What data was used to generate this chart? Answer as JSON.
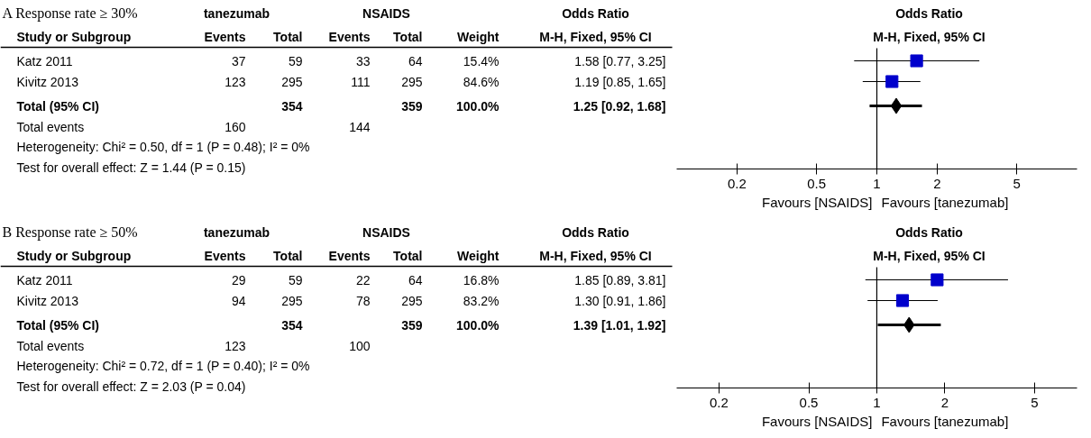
{
  "chart_data": [
    {
      "type": "scatter",
      "orientation": "horizontal",
      "categories": [
        "Katz 2011",
        "Kivitz 2013",
        "Total (95% CI)"
      ],
      "series": [
        {
          "marker": "square",
          "color": "#0000cc",
          "values": [
            1.58,
            1.19,
            null
          ],
          "errors": [
            [
              0.77,
              3.25
            ],
            [
              0.85,
              1.65
            ],
            null
          ]
        },
        {
          "marker": "diamond",
          "color": "#000000",
          "values": [
            null,
            null,
            1.25
          ],
          "errors": [
            null,
            null,
            [
              0.92,
              1.68
            ]
          ]
        }
      ],
      "value_labels": [
        "1.58 [0.77, 3.25]",
        "1.19 [0.85, 1.65]",
        "1.25 [0.92, 1.68]"
      ],
      "log": "x",
      "xlim": [
        0.1,
        10
      ],
      "xticks": [
        0.2,
        0.5,
        1,
        2,
        5
      ],
      "tick_labels": "x",
      "ref_lines": [
        {
          "axis": "x",
          "value": 1
        }
      ],
      "annotations": [
        "tanezumab",
        "NSAIDS",
        "Odds Ratio",
        "Odds Ratio",
        "Study or Subgroup",
        "Events",
        "Total",
        "Events",
        "Total",
        "Weight",
        "M-H, Fixed, 95% CI",
        "M-H, Fixed, 95% CI",
        "37",
        "59",
        "33",
        "64",
        "15.4%",
        "123",
        "295",
        "111",
        "295",
        "84.6%",
        "354",
        "359",
        "100.0%",
        "Total events",
        "160",
        "144",
        "Heterogeneity: Chi² = 0.50, df = 1 (P = 0.48); I² = 0%",
        "Test for overall effect: Z = 1.44 (P = 0.15)",
        "Favours [NSAIDS]",
        "Favours [tanezumab]",
        "A Response rate ≥ 30%"
      ]
    },
    {
      "type": "scatter",
      "orientation": "horizontal",
      "categories": [
        "Katz 2011",
        "Kivitz 2013",
        "Total (95% CI)"
      ],
      "series": [
        {
          "marker": "square",
          "color": "#0000cc",
          "values": [
            1.85,
            1.3,
            null
          ],
          "errors": [
            [
              0.89,
              3.81
            ],
            [
              0.91,
              1.86
            ],
            null
          ]
        },
        {
          "marker": "diamond",
          "color": "#000000",
          "values": [
            null,
            null,
            1.39
          ],
          "errors": [
            null,
            null,
            [
              1.01,
              1.92
            ]
          ]
        }
      ],
      "value_labels": [
        "1.85 [0.89, 3.81]",
        "1.30 [0.91, 1.86]",
        "1.39 [1.01, 1.92]"
      ],
      "log": "x",
      "xlim": [
        0.13,
        7.7
      ],
      "xticks": [
        0.2,
        0.5,
        1,
        2,
        5
      ],
      "tick_labels": "x",
      "ref_lines": [
        {
          "axis": "x",
          "value": 1
        }
      ],
      "annotations": [
        "tanezumab",
        "NSAIDS",
        "Odds Ratio",
        "Odds Ratio",
        "Study or Subgroup",
        "Events",
        "Total",
        "Events",
        "Total",
        "Weight",
        "M-H, Fixed, 95% CI",
        "M-H, Fixed, 95% CI",
        "29",
        "59",
        "22",
        "64",
        "16.8%",
        "94",
        "295",
        "78",
        "295",
        "83.2%",
        "354",
        "359",
        "100.0%",
        "Total events",
        "123",
        "100",
        "Heterogeneity: Chi² = 0.72, df = 1 (P = 0.40); I² = 0%",
        "Test for overall effect: Z = 2.03 (P = 0.04)",
        "Favours [NSAIDS]",
        "Favours [tanezumab]",
        "B Response rate ≥ 50%"
      ]
    }
  ]
}
